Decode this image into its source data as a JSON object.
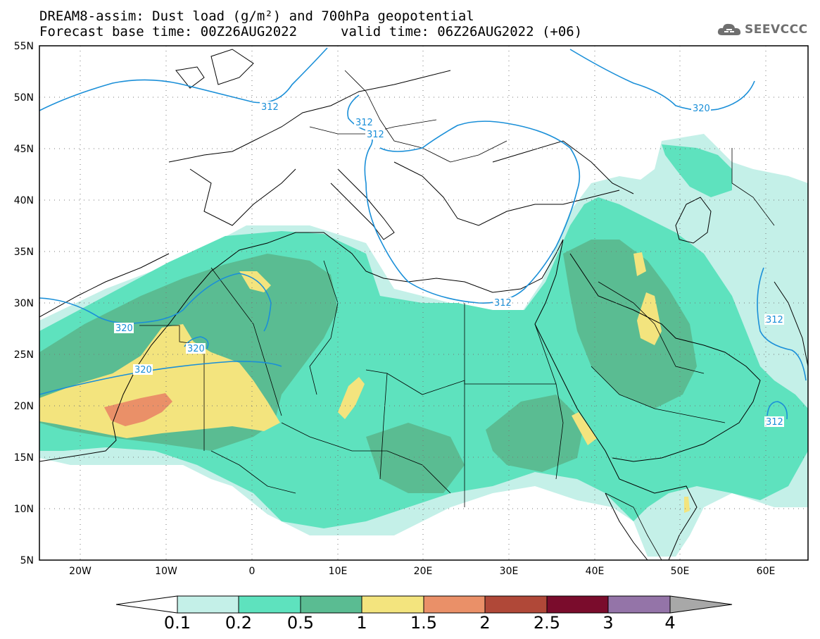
{
  "header": {
    "title_line1": "DREAM8-assim: Dust load (g/m²) and 700hPa geopotential",
    "title_line2a": "Forecast base time: 00Z26AUG2022",
    "title_line2b": "valid time: 06Z26AUG2022 (+06)",
    "logo_text": "SEEVCCC"
  },
  "map": {
    "lat_labels": [
      "55N",
      "50N",
      "45N",
      "40N",
      "35N",
      "30N",
      "25N",
      "20N",
      "15N",
      "10N",
      "5N"
    ],
    "lon_labels": [
      "20W",
      "10W",
      "0",
      "10E",
      "20E",
      "30E",
      "40E",
      "50E",
      "60E"
    ],
    "contour_labels": [
      "312",
      "312",
      "312",
      "312",
      "312",
      "312",
      "320",
      "320",
      "320",
      "320"
    ],
    "contour_color": "#1a8fd8"
  },
  "colorbar": {
    "levels": [
      "0.1",
      "0.2",
      "0.5",
      "1",
      "1.5",
      "2",
      "2.5",
      "3",
      "4"
    ],
    "colors": [
      "#c4f0e8",
      "#5ee2be",
      "#5abc92",
      "#f3e47e",
      "#ea9068",
      "#b04838",
      "#7a0c2c",
      "#9474a8",
      "#a8a8a8"
    ]
  }
}
